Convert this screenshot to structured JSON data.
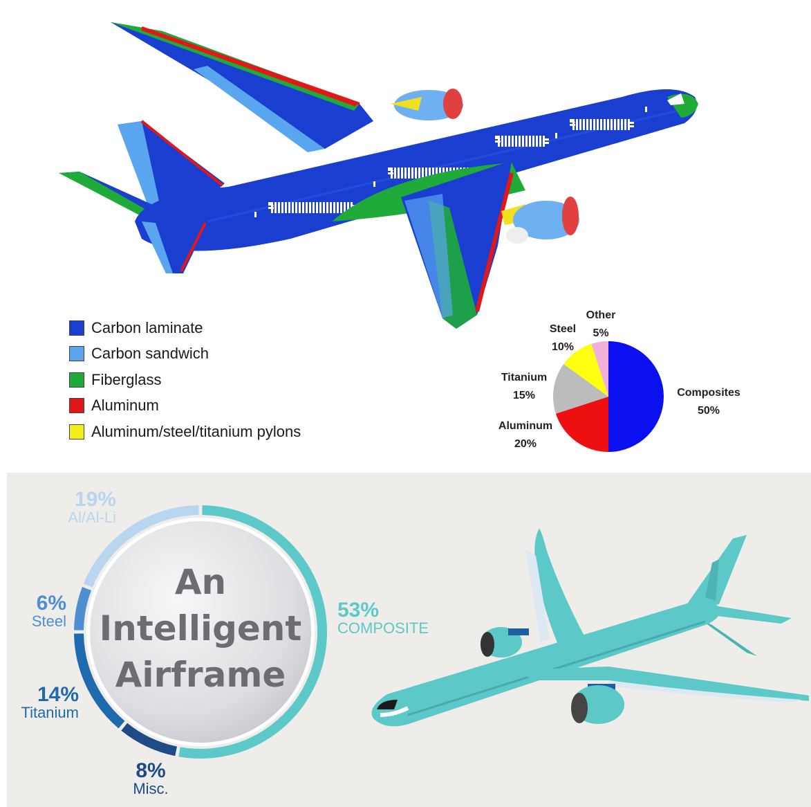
{
  "legend": {
    "items": [
      {
        "label": "Carbon laminate",
        "color": "#1a3fd0"
      },
      {
        "label": "Carbon sandwich",
        "color": "#5aa5f0"
      },
      {
        "label": "Fiberglass",
        "color": "#1faa3a"
      },
      {
        "label": "Aluminum",
        "color": "#e01818"
      },
      {
        "label": "Aluminum/steel/titanium pylons",
        "color": "#f4ee20"
      }
    ]
  },
  "chart_data": [
    {
      "type": "pie",
      "slices": [
        {
          "name": "Composites",
          "value": 50,
          "label": "50%",
          "color": "#0a10f0"
        },
        {
          "name": "Aluminum",
          "value": 20,
          "label": "20%",
          "color": "#ee1010"
        },
        {
          "name": "Titanium",
          "value": 15,
          "label": "15%",
          "color": "#bcbcbc"
        },
        {
          "name": "Steel",
          "value": 10,
          "label": "10%",
          "color": "#ffff10"
        },
        {
          "name": "Other",
          "value": 5,
          "label": "5%",
          "color": "#f2b0d8"
        }
      ]
    },
    {
      "type": "pie",
      "style": "donut-ring",
      "center_title": [
        "An",
        "Intelligent",
        "Airframe"
      ],
      "slices": [
        {
          "name": "COMPOSITE",
          "value": 53,
          "label": "53%",
          "color": "#5cc8c8"
        },
        {
          "name": "Misc.",
          "value": 8,
          "label": "8%",
          "color": "#1e4a86"
        },
        {
          "name": "Titanium",
          "value": 14,
          "label": "14%",
          "color": "#1f6aae"
        },
        {
          "name": "Steel",
          "value": 6,
          "label": "6%",
          "color": "#4d8fd0"
        },
        {
          "name": "Al/Al-Li",
          "value": 19,
          "label": "19%",
          "color": "#b8d6f0"
        }
      ]
    }
  ]
}
